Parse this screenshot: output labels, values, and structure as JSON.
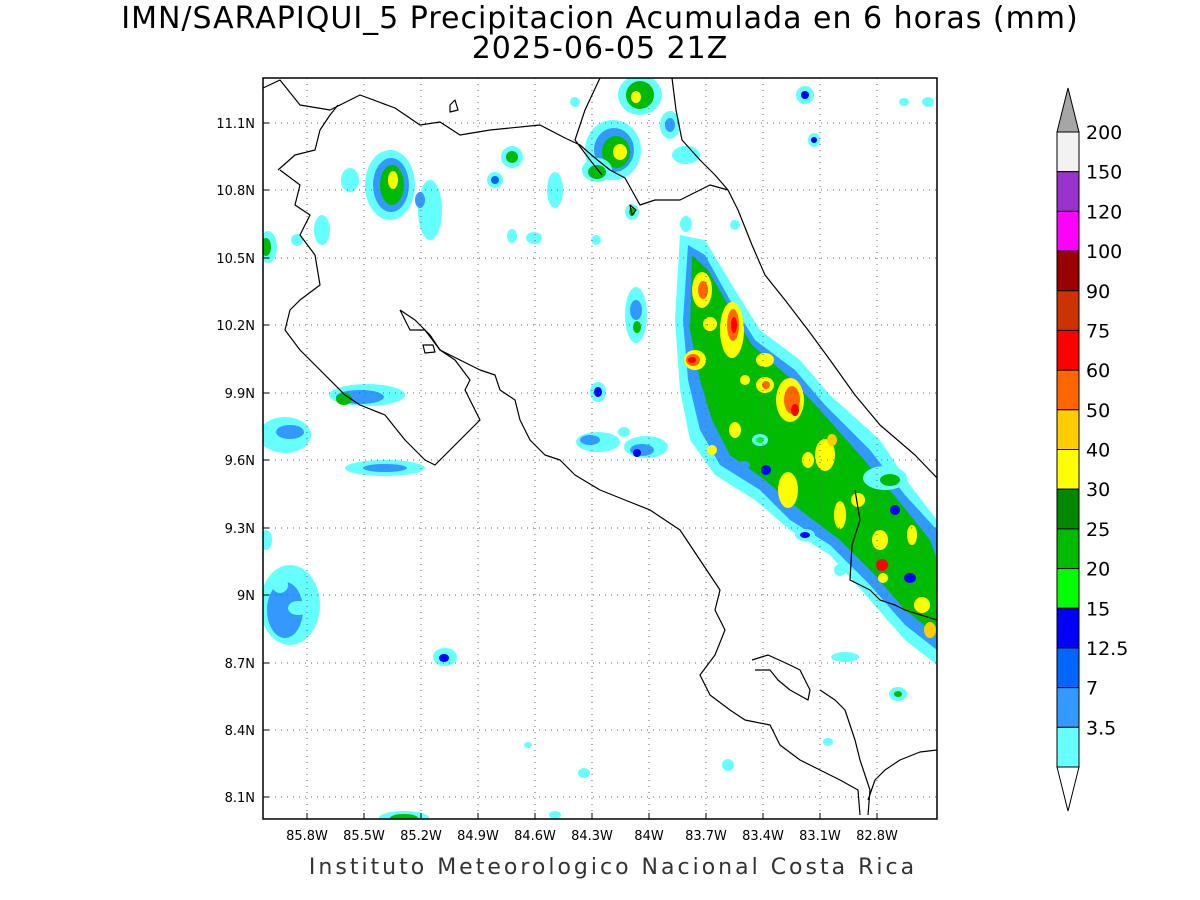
{
  "title": {
    "line1": "IMN/SARAPIQUI_5 Precipitacion Acumulada en 6 horas (mm)",
    "line2": "2025-06-05 21Z"
  },
  "footer": "Instituto Meteorologico Nacional Costa Rica",
  "map": {
    "lon_range": [
      -86.05,
      -83.05
    ],
    "lat_range": [
      8.0,
      11.3
    ],
    "x_ticks": [
      "85.8W",
      "85.5W",
      "85.2W",
      "84.9W",
      "84.6W",
      "84.3W",
      "84W",
      "83.7W",
      "83.4W",
      "83.1W",
      "82.8W"
    ],
    "y_ticks": [
      "11.1N",
      "10.8N",
      "10.5N",
      "10.2N",
      "9.9N",
      "9.6N",
      "9.3N",
      "9N",
      "8.7N",
      "8.4N",
      "8.1N"
    ],
    "grid": "dotted"
  },
  "legend": {
    "labels": [
      "200",
      "150",
      "120",
      "100",
      "90",
      "75",
      "60",
      "50",
      "40",
      "30",
      "25",
      "20",
      "15",
      "12.5",
      "7",
      "3.5"
    ],
    "colors": [
      "#f2f2f2",
      "#9933cc",
      "#ff00ff",
      "#990000",
      "#cc3300",
      "#ff0000",
      "#ff6600",
      "#ffcc00",
      "#ffff00",
      "#008800",
      "#00bb00",
      "#00ff00",
      "#0000ff",
      "#0066ff",
      "#3399ff",
      "#66ffff"
    ],
    "overflow_color": "#a6a6a6"
  }
}
